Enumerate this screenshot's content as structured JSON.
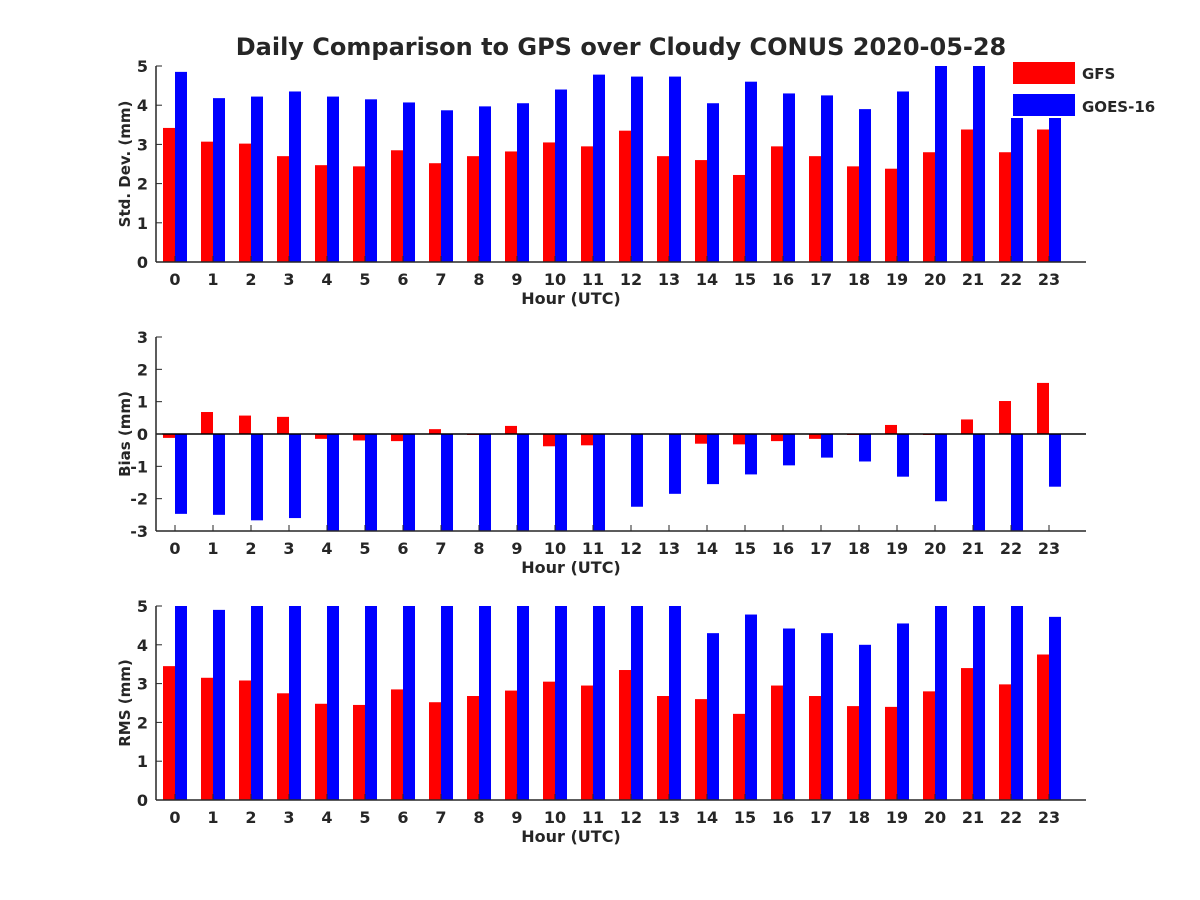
{
  "figure": {
    "title": "Daily Comparison to GPS over Cloudy CONUS 2020-05-28"
  },
  "colors": {
    "GFS": "#ff0000",
    "GOES-16": "#0000ff",
    "axis": "#262626"
  },
  "legend": {
    "placement": "top-right",
    "entries": [
      "GFS",
      "GOES-16"
    ]
  },
  "chart_data": [
    {
      "type": "bar",
      "categories": [
        "0",
        "1",
        "2",
        "3",
        "4",
        "5",
        "6",
        "7",
        "8",
        "9",
        "10",
        "11",
        "12",
        "13",
        "14",
        "15",
        "16",
        "17",
        "18",
        "19",
        "20",
        "21",
        "22",
        "23"
      ],
      "xlabel": "Hour (UTC)",
      "ylabel": "Std. Dev. (mm)",
      "ylim": [
        0,
        5
      ],
      "yticks": [
        0,
        1,
        2,
        3,
        4,
        5
      ],
      "grid": false,
      "series": [
        {
          "name": "GFS",
          "values": [
            3.42,
            3.07,
            3.02,
            2.7,
            2.47,
            2.44,
            2.85,
            2.52,
            2.7,
            2.82,
            3.05,
            2.95,
            3.35,
            2.7,
            2.6,
            2.22,
            2.95,
            2.7,
            2.44,
            2.38,
            2.8,
            3.38,
            2.8,
            3.38
          ]
        },
        {
          "name": "GOES-16",
          "values": [
            4.85,
            4.18,
            4.22,
            4.35,
            4.22,
            4.15,
            4.07,
            3.87,
            3.97,
            4.05,
            4.4,
            4.78,
            4.73,
            4.73,
            4.05,
            4.6,
            4.3,
            4.25,
            3.9,
            4.35,
            5.0,
            5.0,
            4.22,
            4.42
          ]
        }
      ]
    },
    {
      "type": "bar",
      "categories": [
        "0",
        "1",
        "2",
        "3",
        "4",
        "5",
        "6",
        "7",
        "8",
        "9",
        "10",
        "11",
        "12",
        "13",
        "14",
        "15",
        "16",
        "17",
        "18",
        "19",
        "20",
        "21",
        "22",
        "23"
      ],
      "xlabel": "Hour (UTC)",
      "ylabel": "Bias (mm)",
      "ylim": [
        -3,
        3
      ],
      "yticks": [
        -3,
        -2,
        -1,
        0,
        1,
        2,
        3
      ],
      "grid": false,
      "series": [
        {
          "name": "GFS",
          "values": [
            -0.12,
            0.68,
            0.57,
            0.53,
            -0.15,
            -0.2,
            -0.22,
            0.15,
            -0.03,
            0.25,
            -0.38,
            -0.35,
            0.0,
            0.0,
            -0.3,
            -0.32,
            -0.22,
            -0.15,
            -0.03,
            0.28,
            -0.03,
            0.45,
            1.02,
            1.58
          ]
        },
        {
          "name": "GOES-16",
          "values": [
            -2.47,
            -2.5,
            -2.67,
            -2.6,
            -3.0,
            -3.0,
            -3.0,
            -3.0,
            -3.0,
            -3.0,
            -3.0,
            -3.0,
            -2.25,
            -1.85,
            -1.55,
            -1.25,
            -0.97,
            -0.73,
            -0.85,
            -1.32,
            -2.08,
            -3.0,
            -3.0,
            -1.63
          ]
        }
      ]
    },
    {
      "type": "bar",
      "categories": [
        "0",
        "1",
        "2",
        "3",
        "4",
        "5",
        "6",
        "7",
        "8",
        "9",
        "10",
        "11",
        "12",
        "13",
        "14",
        "15",
        "16",
        "17",
        "18",
        "19",
        "20",
        "21",
        "22",
        "23"
      ],
      "xlabel": "Hour (UTC)",
      "ylabel": "RMS (mm)",
      "ylim": [
        0,
        5
      ],
      "yticks": [
        0,
        1,
        2,
        3,
        4,
        5
      ],
      "grid": false,
      "series": [
        {
          "name": "GFS",
          "values": [
            3.45,
            3.15,
            3.08,
            2.75,
            2.48,
            2.45,
            2.85,
            2.52,
            2.68,
            2.82,
            3.05,
            2.95,
            3.35,
            2.68,
            2.6,
            2.22,
            2.95,
            2.68,
            2.42,
            2.4,
            2.8,
            3.4,
            2.98,
            3.75
          ]
        },
        {
          "name": "GOES-16",
          "values": [
            5.0,
            4.9,
            5.0,
            5.0,
            5.0,
            5.0,
            5.0,
            5.0,
            5.0,
            5.0,
            5.0,
            5.0,
            5.0,
            5.0,
            4.3,
            4.78,
            4.42,
            4.3,
            4.0,
            4.55,
            5.0,
            5.0,
            5.0,
            4.72
          ]
        }
      ]
    }
  ]
}
